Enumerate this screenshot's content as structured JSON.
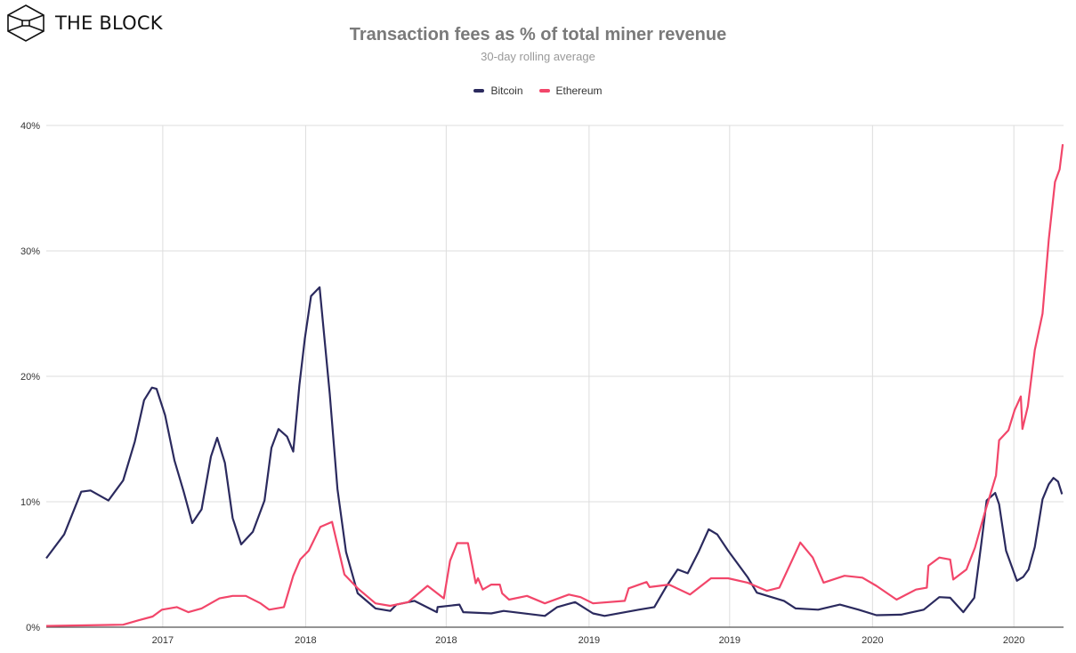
{
  "brand": {
    "name": "THE BLOCK",
    "icon": "cube-logo-icon"
  },
  "colors": {
    "bitcoin": "#2b2a5e",
    "ethereum": "#f2466a",
    "grid": "#dddddd",
    "title": "#7a7a7a"
  },
  "chart_data": {
    "type": "line",
    "title": "Transaction fees as % of total miner revenue",
    "subtitle": "30-day rolling average",
    "xlabel": "",
    "ylabel": "",
    "xlim": [
      "2017-02-01",
      "2020-09-03"
    ],
    "ylim": [
      0,
      40
    ],
    "grid": true,
    "legend": "top-center",
    "x_ticks": [
      {
        "date": "2017-07-01",
        "label": "2017"
      },
      {
        "date": "2018-01-01",
        "label": "2018"
      },
      {
        "date": "2018-07-01",
        "label": "2018"
      },
      {
        "date": "2019-01-01",
        "label": "2019"
      },
      {
        "date": "2019-07-01",
        "label": "2019"
      },
      {
        "date": "2020-01-01",
        "label": "2020"
      },
      {
        "date": "2020-07-01",
        "label": "2020"
      }
    ],
    "y_ticks": [
      {
        "value": 0,
        "label": "0%"
      },
      {
        "value": 10,
        "label": "10%"
      },
      {
        "value": 20,
        "label": "20%"
      },
      {
        "value": 30,
        "label": "30%"
      },
      {
        "value": 40,
        "label": "40%"
      }
    ],
    "series": [
      {
        "name": "Bitcoin",
        "color": "#2b2a5e",
        "points": [
          [
            "2017-02-01",
            5.5
          ],
          [
            "2017-02-24",
            7.4
          ],
          [
            "2017-03-18",
            10.8
          ],
          [
            "2017-03-30",
            10.9
          ],
          [
            "2017-04-22",
            10.1
          ],
          [
            "2017-05-11",
            11.7
          ],
          [
            "2017-05-26",
            14.8
          ],
          [
            "2017-06-07",
            18.1
          ],
          [
            "2017-06-17",
            19.1
          ],
          [
            "2017-06-23",
            19.0
          ],
          [
            "2017-07-04",
            16.9
          ],
          [
            "2017-07-16",
            13.3
          ],
          [
            "2017-07-28",
            10.8
          ],
          [
            "2017-08-08",
            8.3
          ],
          [
            "2017-08-20",
            9.4
          ],
          [
            "2017-09-01",
            13.6
          ],
          [
            "2017-09-09",
            15.1
          ],
          [
            "2017-09-19",
            13.1
          ],
          [
            "2017-09-29",
            8.7
          ],
          [
            "2017-10-10",
            6.6
          ],
          [
            "2017-10-25",
            7.6
          ],
          [
            "2017-11-09",
            10.1
          ],
          [
            "2017-11-18",
            14.3
          ],
          [
            "2017-11-27",
            15.8
          ],
          [
            "2017-12-08",
            15.2
          ],
          [
            "2017-12-16",
            14.0
          ],
          [
            "2017-12-24",
            19.3
          ],
          [
            "2017-12-31",
            23.0
          ],
          [
            "2018-01-08",
            26.4
          ],
          [
            "2018-01-19",
            27.1
          ],
          [
            "2018-02-01",
            18.6
          ],
          [
            "2018-02-11",
            11.0
          ],
          [
            "2018-02-22",
            6.0
          ],
          [
            "2018-03-09",
            2.7
          ],
          [
            "2018-04-01",
            1.5
          ],
          [
            "2018-04-20",
            1.3
          ],
          [
            "2018-04-28",
            1.8
          ],
          [
            "2018-05-21",
            2.1
          ],
          [
            "2018-06-19",
            1.2
          ],
          [
            "2018-06-20",
            1.6
          ],
          [
            "2018-07-18",
            1.8
          ],
          [
            "2018-07-23",
            1.2
          ],
          [
            "2018-08-28",
            1.1
          ],
          [
            "2018-09-13",
            1.3
          ],
          [
            "2018-11-05",
            0.9
          ],
          [
            "2018-11-21",
            1.6
          ],
          [
            "2018-12-14",
            2.0
          ],
          [
            "2019-01-06",
            1.1
          ],
          [
            "2019-01-21",
            0.9
          ],
          [
            "2019-03-06",
            1.4
          ],
          [
            "2019-03-26",
            1.6
          ],
          [
            "2019-04-10",
            3.2
          ],
          [
            "2019-04-25",
            4.6
          ],
          [
            "2019-05-08",
            4.3
          ],
          [
            "2019-05-22",
            6.0
          ],
          [
            "2019-06-04",
            7.8
          ],
          [
            "2019-06-15",
            7.4
          ],
          [
            "2019-06-29",
            6.1
          ],
          [
            "2019-07-24",
            4.0
          ],
          [
            "2019-08-05",
            2.75
          ],
          [
            "2019-09-09",
            2.1
          ],
          [
            "2019-09-24",
            1.5
          ],
          [
            "2019-10-23",
            1.4
          ],
          [
            "2019-11-20",
            1.8
          ],
          [
            "2019-12-14",
            1.4
          ],
          [
            "2020-01-06",
            0.96
          ],
          [
            "2020-02-07",
            1.0
          ],
          [
            "2020-03-07",
            1.4
          ],
          [
            "2020-03-27",
            2.4
          ],
          [
            "2020-04-10",
            2.35
          ],
          [
            "2020-04-27",
            1.2
          ],
          [
            "2020-05-11",
            2.35
          ],
          [
            "2020-05-20",
            6.6
          ],
          [
            "2020-05-27",
            10.1
          ],
          [
            "2020-06-07",
            10.7
          ],
          [
            "2020-06-12",
            9.8
          ],
          [
            "2020-06-21",
            6.1
          ],
          [
            "2020-07-05",
            3.7
          ],
          [
            "2020-07-13",
            4.0
          ],
          [
            "2020-07-20",
            4.6
          ],
          [
            "2020-07-28",
            6.4
          ],
          [
            "2020-08-07",
            10.2
          ],
          [
            "2020-08-15",
            11.4
          ],
          [
            "2020-08-21",
            11.9
          ],
          [
            "2020-08-27",
            11.6
          ],
          [
            "2020-09-01",
            10.6
          ]
        ]
      },
      {
        "name": "Ethereum",
        "color": "#f2466a",
        "points": [
          [
            "2017-02-01",
            0.1
          ],
          [
            "2017-05-11",
            0.2
          ],
          [
            "2017-05-31",
            0.55
          ],
          [
            "2017-06-18",
            0.85
          ],
          [
            "2017-06-30",
            1.4
          ],
          [
            "2017-07-19",
            1.6
          ],
          [
            "2017-08-03",
            1.2
          ],
          [
            "2017-08-20",
            1.5
          ],
          [
            "2017-09-12",
            2.3
          ],
          [
            "2017-09-29",
            2.5
          ],
          [
            "2017-10-16",
            2.5
          ],
          [
            "2017-11-04",
            1.9
          ],
          [
            "2017-11-15",
            1.4
          ],
          [
            "2017-12-04",
            1.6
          ],
          [
            "2017-12-16",
            4.1
          ],
          [
            "2017-12-25",
            5.4
          ],
          [
            "2018-01-05",
            6.1
          ],
          [
            "2018-01-20",
            8.0
          ],
          [
            "2018-02-04",
            8.4
          ],
          [
            "2018-02-20",
            4.2
          ],
          [
            "2018-03-09",
            3.1
          ],
          [
            "2018-04-01",
            1.9
          ],
          [
            "2018-04-20",
            1.7
          ],
          [
            "2018-05-13",
            2.0
          ],
          [
            "2018-06-07",
            3.3
          ],
          [
            "2018-06-28",
            2.3
          ],
          [
            "2018-07-06",
            5.3
          ],
          [
            "2018-07-15",
            6.7
          ],
          [
            "2018-07-29",
            6.7
          ],
          [
            "2018-08-08",
            3.5
          ],
          [
            "2018-08-11",
            3.9
          ],
          [
            "2018-08-17",
            3.0
          ],
          [
            "2018-08-28",
            3.4
          ],
          [
            "2018-09-08",
            3.4
          ],
          [
            "2018-09-11",
            2.7
          ],
          [
            "2018-09-20",
            2.2
          ],
          [
            "2018-10-13",
            2.5
          ],
          [
            "2018-11-05",
            1.9
          ],
          [
            "2018-12-06",
            2.6
          ],
          [
            "2018-12-21",
            2.4
          ],
          [
            "2019-01-06",
            1.9
          ],
          [
            "2019-02-16",
            2.1
          ],
          [
            "2019-02-21",
            3.1
          ],
          [
            "2019-03-16",
            3.6
          ],
          [
            "2019-03-20",
            3.2
          ],
          [
            "2019-04-14",
            3.4
          ],
          [
            "2019-05-11",
            2.6
          ],
          [
            "2019-06-07",
            3.9
          ],
          [
            "2019-06-29",
            3.9
          ],
          [
            "2019-07-24",
            3.55
          ],
          [
            "2019-08-18",
            2.9
          ],
          [
            "2019-09-03",
            3.15
          ],
          [
            "2019-09-30",
            6.75
          ],
          [
            "2019-10-16",
            5.55
          ],
          [
            "2019-10-30",
            3.55
          ],
          [
            "2019-11-26",
            4.1
          ],
          [
            "2019-12-19",
            3.95
          ],
          [
            "2020-01-06",
            3.3
          ],
          [
            "2020-02-01",
            2.2
          ],
          [
            "2020-02-26",
            3.0
          ],
          [
            "2020-03-11",
            3.15
          ],
          [
            "2020-03-13",
            4.9
          ],
          [
            "2020-03-27",
            5.55
          ],
          [
            "2020-04-10",
            5.4
          ],
          [
            "2020-04-14",
            3.8
          ],
          [
            "2020-05-01",
            4.6
          ],
          [
            "2020-05-12",
            6.35
          ],
          [
            "2020-05-24",
            9.0
          ],
          [
            "2020-06-08",
            12.1
          ],
          [
            "2020-06-12",
            14.9
          ],
          [
            "2020-06-24",
            15.7
          ],
          [
            "2020-07-02",
            17.3
          ],
          [
            "2020-07-10",
            18.4
          ],
          [
            "2020-07-12",
            15.8
          ],
          [
            "2020-07-19",
            17.6
          ],
          [
            "2020-07-28",
            22.1
          ],
          [
            "2020-08-07",
            25.0
          ],
          [
            "2020-08-15",
            30.9
          ],
          [
            "2020-08-23",
            35.5
          ],
          [
            "2020-08-29",
            36.5
          ],
          [
            "2020-09-02",
            38.5
          ]
        ]
      }
    ]
  }
}
